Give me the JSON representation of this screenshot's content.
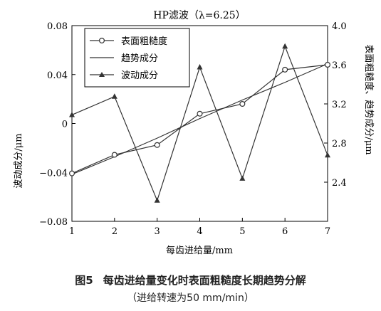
{
  "caption": {
    "figure_label": "图5",
    "title": "每齿进给量变化时表面粗糙度长期趋势分解",
    "subtitle": "（进给转速为50 mm/min）"
  },
  "chart_data": {
    "type": "line",
    "title": "HP滤波（λ=6.25）",
    "xlabel": "每齿进给量/mm",
    "ylabel_left": "波动成分/μm",
    "ylabel_right": "表面粗糙度、趋势成分/μm",
    "x": [
      1,
      2,
      3,
      4,
      5,
      6,
      7
    ],
    "xlim": [
      1,
      7
    ],
    "x_ticks": [
      "1",
      "2",
      "3",
      "4",
      "5",
      "6",
      "7"
    ],
    "ylim_left": [
      -0.08,
      0.08
    ],
    "y_ticks_left": [
      "−0.08",
      "−0.04",
      "0",
      "0.04",
      "0.08"
    ],
    "ylim_right": [
      2.0,
      4.0
    ],
    "y_ticks_right": [
      "2.4",
      "2.8",
      "3.2",
      "3.6",
      "4.0"
    ],
    "legend_position": "top-left",
    "grid": false,
    "series": [
      {
        "name": "表面粗糙度",
        "axis": "right",
        "marker": "open-circle",
        "values": [
          2.49,
          2.68,
          2.78,
          3.1,
          3.2,
          3.55,
          3.6
        ]
      },
      {
        "name": "趋势成分",
        "axis": "right",
        "marker": "none",
        "values": [
          2.48,
          2.66,
          2.85,
          3.05,
          3.24,
          3.42,
          3.61
        ]
      },
      {
        "name": "波动成分",
        "axis": "left",
        "marker": "filled-triangle",
        "values": [
          0.007,
          0.022,
          -0.063,
          0.046,
          -0.045,
          0.063,
          -0.026
        ]
      }
    ],
    "colors": {
      "line": "#333333",
      "axis": "#000000"
    }
  }
}
